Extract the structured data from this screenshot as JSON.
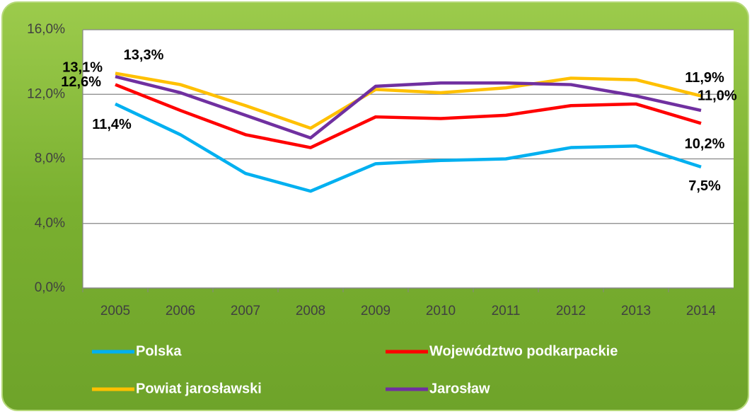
{
  "chart_data": {
    "type": "line",
    "categories": [
      "2005",
      "2006",
      "2007",
      "2008",
      "2009",
      "2010",
      "2011",
      "2012",
      "2013",
      "2014"
    ],
    "series": [
      {
        "name": "Polska",
        "color": "#00b0f0",
        "values": [
          11.4,
          9.5,
          7.1,
          6.0,
          7.7,
          7.9,
          8.0,
          8.7,
          8.8,
          7.5
        ],
        "value_labels": [
          "11,4%",
          null,
          null,
          null,
          null,
          null,
          null,
          null,
          null,
          "7,5%"
        ]
      },
      {
        "name": "Województwo podkarpackie",
        "color": "#ff0000",
        "values": [
          12.6,
          11.0,
          9.5,
          8.7,
          10.6,
          10.5,
          10.7,
          11.3,
          11.4,
          10.2
        ],
        "value_labels": [
          "12,6%",
          null,
          null,
          null,
          null,
          null,
          null,
          null,
          null,
          "10,2%"
        ]
      },
      {
        "name": "Powiat jarosławski",
        "color": "#ffc000",
        "values": [
          13.3,
          12.6,
          11.3,
          9.9,
          12.3,
          12.1,
          12.4,
          13.0,
          12.9,
          11.9
        ],
        "value_labels": [
          "13,3%",
          null,
          null,
          null,
          null,
          null,
          null,
          null,
          null,
          "11,9%"
        ]
      },
      {
        "name": "Jarosław",
        "color": "#7030a0",
        "values": [
          13.1,
          12.1,
          10.7,
          9.3,
          12.5,
          12.7,
          12.7,
          12.6,
          11.9,
          11.0
        ],
        "value_labels": [
          "13,1%",
          null,
          null,
          null,
          null,
          null,
          null,
          null,
          null,
          "11,0%"
        ]
      }
    ],
    "ylim": [
      0,
      16
    ],
    "yticks": [
      {
        "value": 0,
        "label": "0,0%"
      },
      {
        "value": 4,
        "label": "4,0%"
      },
      {
        "value": 8,
        "label": "8,0%"
      },
      {
        "value": 12,
        "label": "12,0%"
      },
      {
        "value": 16,
        "label": "16,0%"
      }
    ],
    "grid": true,
    "legend": "bottom"
  }
}
